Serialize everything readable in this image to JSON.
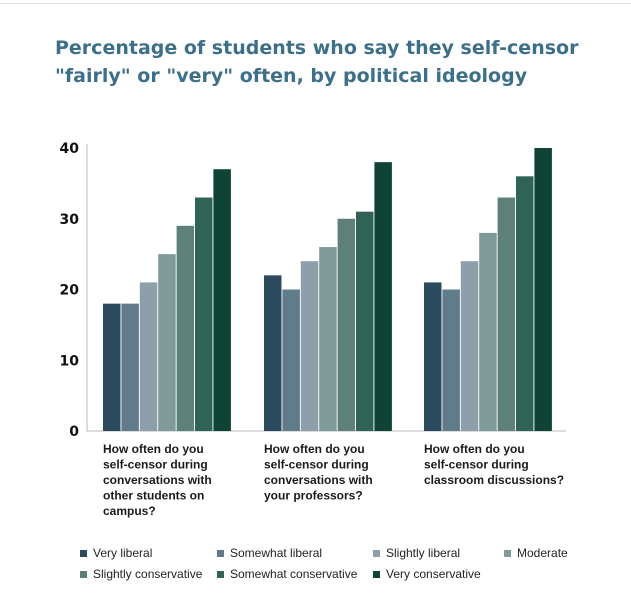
{
  "title_lines": [
    "Percentage of students who say they self-censor",
    "\"fairly\" or \"very\" often, by political ideology"
  ],
  "chart_data": {
    "type": "bar",
    "title": "Percentage of students who say they self-censor \"fairly\" or \"very\" often, by political ideology",
    "xlabel": "",
    "ylabel": "",
    "ylim": [
      0,
      40
    ],
    "yticks": [
      0,
      10,
      20,
      30,
      40
    ],
    "grid": false,
    "legend_position": "bottom",
    "categories": [
      [
        "How often do you",
        "self-censor during",
        "conversations with",
        "other students on",
        "campus?"
      ],
      [
        "How often do you",
        "self-censor during",
        "conversations with",
        "your professors?"
      ],
      [
        "How often do you",
        "self-censor during",
        "classroom discussions?"
      ]
    ],
    "series": [
      {
        "name": "Very liberal",
        "color": "#2c4a5e",
        "values": [
          18,
          22,
          21
        ]
      },
      {
        "name": "Somewhat liberal",
        "color": "#627b8b",
        "values": [
          18,
          20,
          20
        ]
      },
      {
        "name": "Slightly liberal",
        "color": "#8c9faa",
        "values": [
          21,
          24,
          24
        ]
      },
      {
        "name": "Moderate",
        "color": "#7e9a99",
        "values": [
          25,
          26,
          28
        ]
      },
      {
        "name": "Slightly conservative",
        "color": "#5d8178",
        "values": [
          29,
          30,
          33
        ]
      },
      {
        "name": "Somewhat conservative",
        "color": "#2f6358",
        "values": [
          33,
          31,
          36
        ]
      },
      {
        "name": "Very conservative",
        "color": "#0f4336",
        "values": [
          37,
          38,
          40
        ]
      }
    ]
  }
}
